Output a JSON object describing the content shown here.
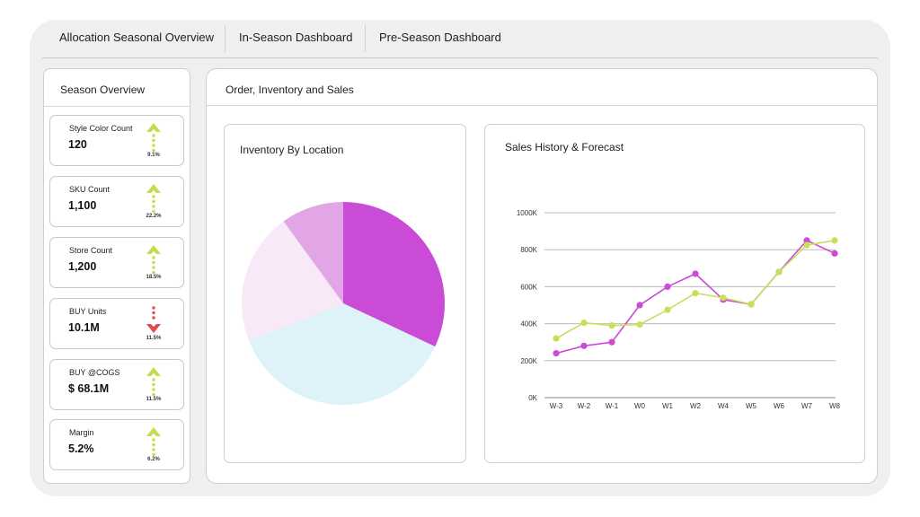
{
  "tabs": [
    {
      "label": "Allocation Seasonal Overview"
    },
    {
      "label": "In-Season Dashboard"
    },
    {
      "label": "Pre-Season Dashboard"
    }
  ],
  "sidebar": {
    "title": "Season Overview",
    "kpis": [
      {
        "label": "Style Color Count",
        "value": "120",
        "change": "9.1%",
        "direction": "up"
      },
      {
        "label": "SKU Count",
        "value": "1,100",
        "change": "22.2%",
        "direction": "up"
      },
      {
        "label": "Store Count",
        "value": "1,200",
        "change": "18.5%",
        "direction": "up"
      },
      {
        "label": "BUY Units",
        "value": "10.1M",
        "change": "11.5%",
        "direction": "down"
      },
      {
        "label": "BUY @COGS",
        "value": "$ 68.1M",
        "change": "11.5%",
        "direction": "up"
      },
      {
        "label": "Margin",
        "value": "5.2%",
        "change": "6.2%",
        "direction": "up"
      }
    ]
  },
  "main": {
    "title": "Order, Inventory and Sales"
  },
  "colors": {
    "up": "#c6dc4f",
    "down": "#e34a4a",
    "magenta": "#c94bd6",
    "lavender": "#e2a6e7",
    "blush": "#f7e9f8",
    "sky": "#def3f8",
    "lime": "#c9df5a"
  },
  "chart_data": [
    {
      "type": "pie",
      "title": "Inventory By Location",
      "slices": [
        {
          "value": 32,
          "color": "#c94bd6"
        },
        {
          "value": 37,
          "color": "#def3f8"
        },
        {
          "value": 21,
          "color": "#f7e9f8"
        },
        {
          "value": 10,
          "color": "#e2a6e7"
        }
      ]
    },
    {
      "type": "line",
      "title": "Sales History & Forecast",
      "categories": [
        "W-3",
        "W-2",
        "W-1",
        "W0",
        "W1",
        "W2",
        "W4",
        "W5",
        "W6",
        "W7",
        "W8"
      ],
      "ylim": [
        0,
        1000
      ],
      "yticks": [
        "0K",
        "200K",
        "400K",
        "600K",
        "800K",
        "1000K"
      ],
      "grid": true,
      "series": [
        {
          "color": "#c94bd6",
          "values": [
            240,
            280,
            300,
            500,
            600,
            670,
            530,
            505,
            680,
            850,
            780
          ]
        },
        {
          "color": "#c9df5a",
          "values": [
            320,
            405,
            390,
            395,
            475,
            565,
            540,
            505,
            680,
            825,
            850
          ]
        }
      ]
    }
  ]
}
